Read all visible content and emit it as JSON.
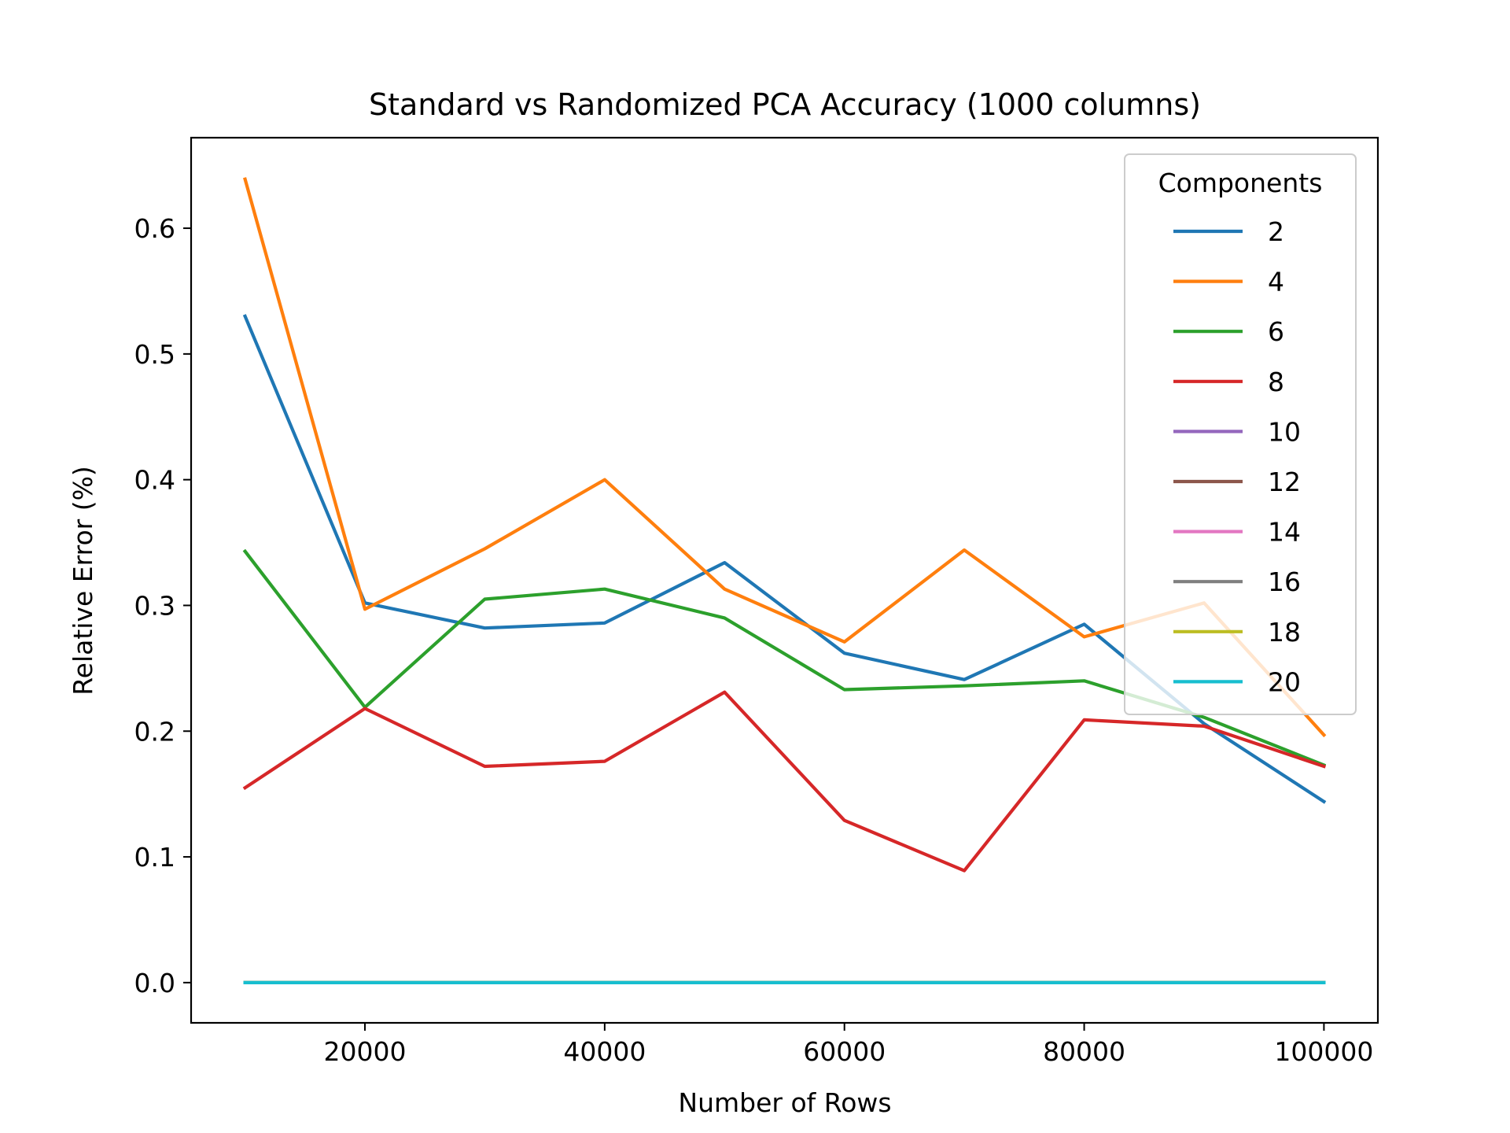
{
  "chart_data": {
    "type": "line",
    "title": "Standard vs Randomized PCA Accuracy (1000 columns)",
    "xlabel": "Number of Rows",
    "ylabel": "Relative Error (%)",
    "xlim": [
      5500,
      104500
    ],
    "ylim": [
      -0.032,
      0.672
    ],
    "xticks": [
      20000,
      40000,
      60000,
      80000,
      100000
    ],
    "xtick_labels": [
      "20000",
      "40000",
      "60000",
      "80000",
      "100000"
    ],
    "yticks": [
      0.0,
      0.1,
      0.2,
      0.3,
      0.4,
      0.5,
      0.6
    ],
    "ytick_labels": [
      "0.0",
      "0.1",
      "0.2",
      "0.3",
      "0.4",
      "0.5",
      "0.6"
    ],
    "grid": false,
    "legend": {
      "title": "Components",
      "placement": "top-right"
    },
    "x": [
      10000,
      20000,
      30000,
      40000,
      50000,
      60000,
      70000,
      80000,
      90000,
      100000
    ],
    "series": [
      {
        "name": "2",
        "color": "#1f77b4",
        "values": [
          0.53,
          0.302,
          0.282,
          0.286,
          0.334,
          0.262,
          0.241,
          0.285,
          0.206,
          0.144
        ]
      },
      {
        "name": "4",
        "color": "#ff7f0e",
        "values": [
          0.639,
          0.297,
          0.345,
          0.4,
          0.313,
          0.271,
          0.344,
          0.275,
          0.302,
          0.197
        ]
      },
      {
        "name": "6",
        "color": "#2ca02c",
        "values": [
          0.343,
          0.219,
          0.305,
          0.313,
          0.29,
          0.233,
          0.236,
          0.24,
          0.211,
          0.173
        ]
      },
      {
        "name": "8",
        "color": "#d62728",
        "values": [
          0.155,
          0.218,
          0.172,
          0.176,
          0.231,
          0.129,
          0.089,
          0.209,
          0.204,
          0.172
        ]
      },
      {
        "name": "10",
        "color": "#9467bd",
        "values": [
          0.0,
          0.0,
          0.0,
          0.0,
          0.0,
          0.0,
          0.0,
          0.0,
          0.0,
          0.0
        ]
      },
      {
        "name": "12",
        "color": "#8c564b",
        "values": [
          0.0,
          0.0,
          0.0,
          0.0,
          0.0,
          0.0,
          0.0,
          0.0,
          0.0,
          0.0
        ]
      },
      {
        "name": "14",
        "color": "#e377c2",
        "values": [
          0.0,
          0.0,
          0.0,
          0.0,
          0.0,
          0.0,
          0.0,
          0.0,
          0.0,
          0.0
        ]
      },
      {
        "name": "16",
        "color": "#7f7f7f",
        "values": [
          0.0,
          0.0,
          0.0,
          0.0,
          0.0,
          0.0,
          0.0,
          0.0,
          0.0,
          0.0
        ]
      },
      {
        "name": "18",
        "color": "#bcbd22",
        "values": [
          0.0,
          0.0,
          0.0,
          0.0,
          0.0,
          0.0,
          0.0,
          0.0,
          0.0,
          0.0
        ]
      },
      {
        "name": "20",
        "color": "#17becf",
        "values": [
          0.0,
          0.0,
          0.0,
          0.0,
          0.0,
          0.0,
          0.0,
          0.0,
          0.0,
          0.0
        ]
      }
    ]
  }
}
